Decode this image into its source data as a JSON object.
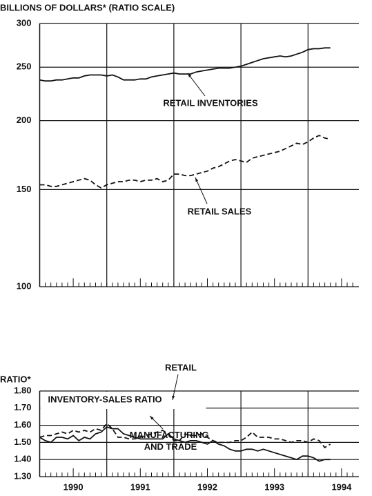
{
  "chart_data": [
    {
      "type": "line",
      "ylabel": "BILLIONS OF DOLLARS* (RATIO SCALE)",
      "ylog": true,
      "ylim": [
        100,
        300
      ],
      "yticks": [
        100,
        150,
        200,
        250,
        300
      ],
      "grid": true,
      "series": [
        {
          "name": "RETAIL INVENTORIES",
          "color": "#111",
          "style": "solid",
          "values": [
            237,
            236,
            236,
            237,
            237,
            238,
            239,
            239,
            241,
            242,
            242,
            242,
            241,
            242,
            240,
            237,
            237,
            237,
            238,
            238,
            240,
            241,
            242,
            243,
            244,
            243,
            243,
            243,
            245,
            246,
            247,
            248,
            249,
            249,
            249,
            250,
            251,
            253,
            255,
            257,
            259,
            260,
            261,
            262,
            261,
            262,
            264,
            266,
            269,
            270,
            270,
            271,
            271
          ]
        },
        {
          "name": "RETAIL SALES",
          "color": "#111",
          "style": "dashed",
          "values": [
            153,
            153,
            152,
            152,
            153,
            154,
            155,
            156,
            157,
            156,
            153,
            151,
            153,
            154,
            155,
            155,
            156,
            156,
            155,
            156,
            156,
            157,
            155,
            156,
            160,
            160,
            159,
            159,
            160,
            161,
            162,
            164,
            165,
            167,
            169,
            170,
            169,
            168,
            171,
            172,
            173,
            174,
            175,
            176,
            178,
            180,
            182,
            181,
            183,
            186,
            188,
            186,
            185
          ]
        }
      ]
    },
    {
      "type": "line",
      "title": "INVENTORY-SALES RATIO",
      "ylabel": "RATIO*",
      "ylim": [
        1.3,
        1.8
      ],
      "yticks": [
        {
          "value": 1.3,
          "label": "1.30"
        },
        {
          "value": 1.4,
          "label": "1.40"
        },
        {
          "value": 1.5,
          "label": "1.50"
        },
        {
          "value": 1.6,
          "label": "1.60"
        },
        {
          "value": 1.7,
          "label": "1.70"
        },
        {
          "value": 1.8,
          "label": "1.80"
        }
      ],
      "grid": true,
      "categories": [
        null,
        null,
        null,
        null,
        null,
        null,
        "1990",
        null,
        null,
        null,
        null,
        null,
        null,
        null,
        null,
        null,
        null,
        null,
        "1991",
        null,
        null,
        null,
        null,
        null,
        null,
        null,
        null,
        null,
        null,
        null,
        "1992",
        null,
        null,
        null,
        null,
        null,
        null,
        null,
        null,
        null,
        null,
        null,
        "1993",
        null,
        null,
        null,
        null,
        null,
        null,
        null,
        null,
        null,
        null,
        null,
        "1994",
        null,
        null
      ],
      "series": [
        {
          "name": "RETAIL",
          "color": "#111",
          "style": "dashed",
          "values": [
            1.53,
            1.54,
            1.54,
            1.55,
            1.56,
            1.55,
            1.57,
            1.56,
            1.57,
            1.56,
            1.58,
            1.57,
            1.61,
            1.58,
            1.53,
            1.53,
            1.52,
            1.52,
            1.53,
            1.54,
            1.55,
            1.56,
            1.57,
            1.55,
            1.51,
            1.51,
            1.55,
            1.54,
            1.54,
            1.55,
            1.53,
            1.51,
            1.5,
            1.5,
            1.5,
            1.51,
            1.51,
            1.53,
            1.56,
            1.53,
            1.53,
            1.53,
            1.52,
            1.52,
            1.51,
            1.5,
            1.51,
            1.51,
            1.5,
            1.52,
            1.51,
            1.47,
            1.49,
            null,
            null,
            null,
            null
          ]
        },
        {
          "name": "MANUFACTURING AND TRADE",
          "color": "#111",
          "style": "solid",
          "values": [
            1.53,
            1.51,
            1.5,
            1.53,
            1.53,
            1.52,
            1.54,
            1.51,
            1.53,
            1.52,
            1.55,
            1.56,
            1.59,
            1.58,
            1.58,
            1.55,
            1.54,
            1.53,
            1.52,
            1.52,
            1.52,
            1.52,
            1.52,
            1.55,
            1.52,
            1.51,
            1.5,
            1.51,
            1.51,
            1.5,
            1.49,
            1.51,
            1.49,
            1.48,
            1.46,
            1.45,
            1.45,
            1.46,
            1.46,
            1.45,
            1.46,
            1.45,
            1.44,
            1.43,
            1.42,
            1.41,
            1.4,
            1.42,
            1.42,
            1.41,
            1.39,
            1.4,
            1.4,
            null,
            null,
            null,
            null
          ]
        }
      ]
    }
  ]
}
